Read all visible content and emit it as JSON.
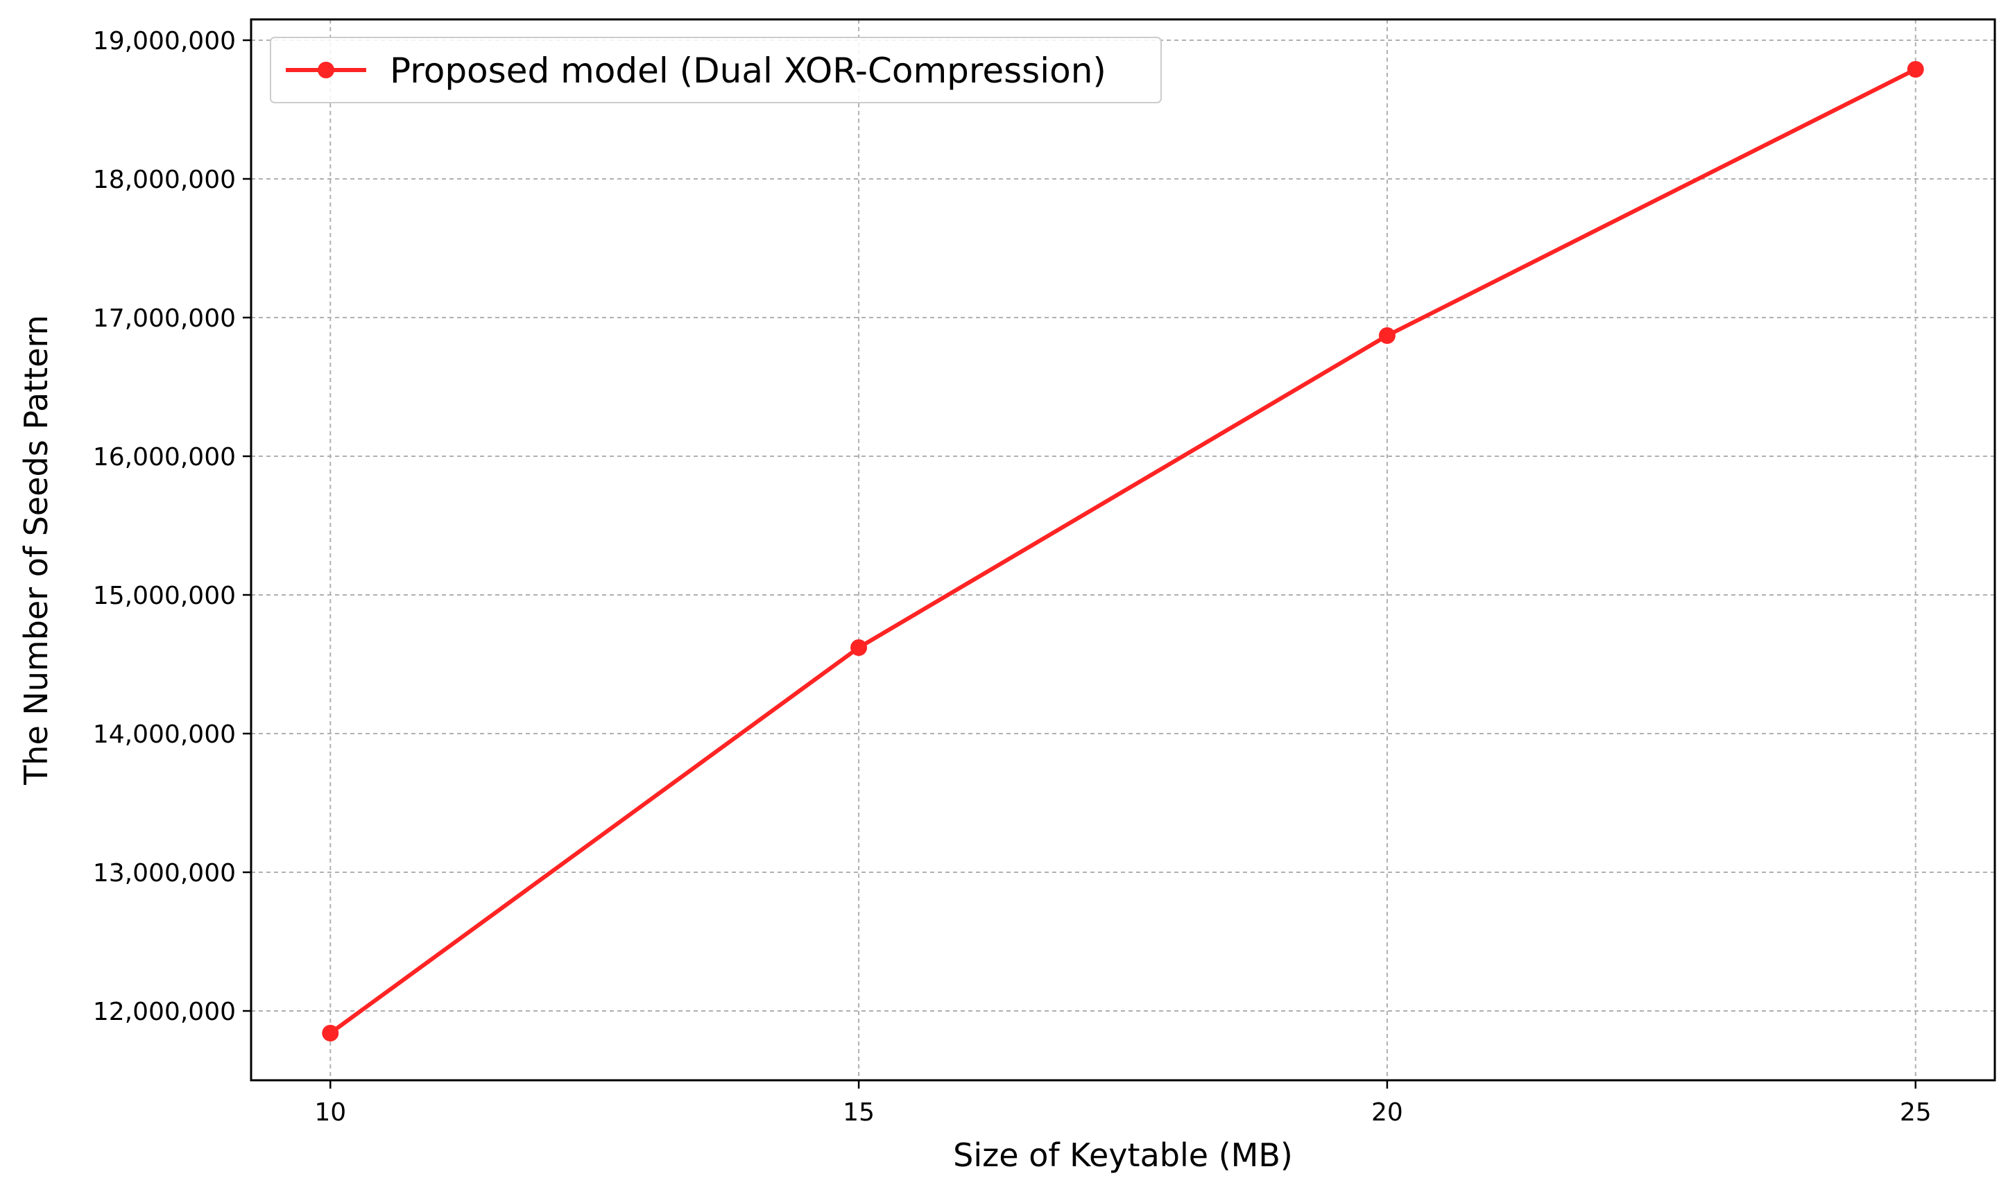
{
  "chart_data": {
    "type": "line",
    "title": "",
    "xlabel": "Size of Keytable (MB)",
    "ylabel": "The Number of Seeds Pattern",
    "x": [
      10,
      15,
      20,
      25
    ],
    "xticks": [
      10,
      15,
      20,
      25
    ],
    "xlim": [
      9.25,
      25.75
    ],
    "ylim": [
      11500000,
      19150000
    ],
    "yticks": [
      12000000,
      13000000,
      14000000,
      15000000,
      16000000,
      17000000,
      18000000,
      19000000
    ],
    "ytick_labels": [
      "12,000,000",
      "13,000,000",
      "14,000,000",
      "15,000,000",
      "16,000,000",
      "17,000,000",
      "18,000,000",
      "19,000,000"
    ],
    "grid": true,
    "legend_position": "top-left",
    "series": [
      {
        "name": "Proposed model (Dual XOR-Compression)",
        "color": "#ff2424",
        "marker": "circle",
        "values": [
          11840000,
          14620000,
          16870000,
          18790000
        ]
      }
    ]
  }
}
